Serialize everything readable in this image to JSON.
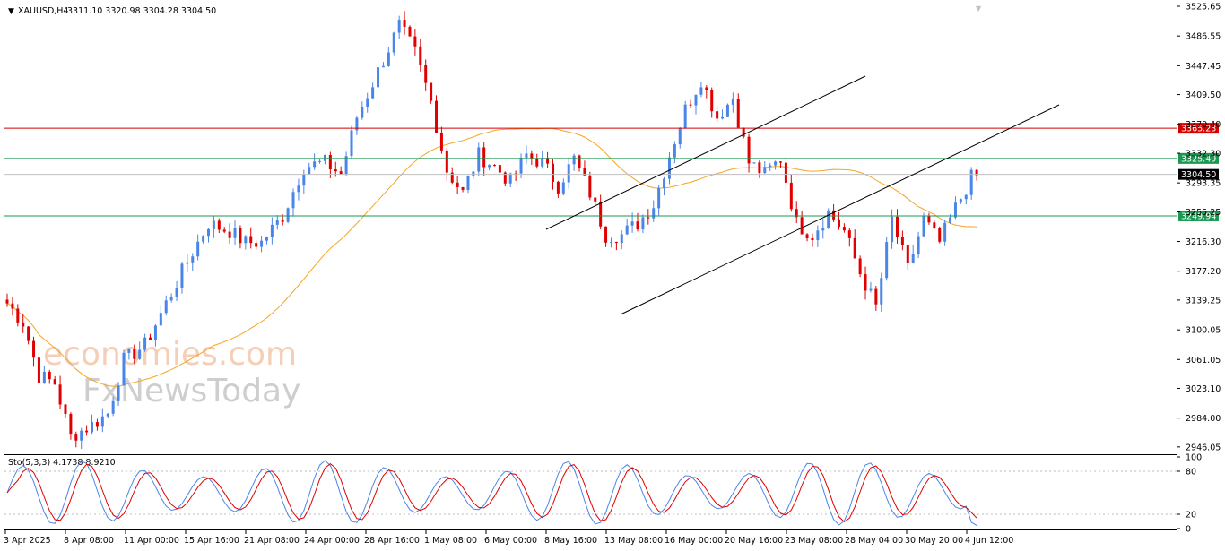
{
  "header": {
    "symbol": "XAUUSD,H4",
    "ohlc": "3311.10 3320.98 3304.28 3304.50"
  },
  "watermark": {
    "line1": "economies.com",
    "line2": "FxNewsToday"
  },
  "chart_data": {
    "type": "candlestick",
    "yaxis_ticks": [
      3525.65,
      3486.55,
      3447.45,
      3409.5,
      3370.4,
      3332.3,
      3293.35,
      3255.25,
      3216.3,
      3177.2,
      3139.25,
      3100.05,
      3061.05,
      3023.1,
      2984.0,
      2946.05
    ],
    "ylim": [
      2940,
      3528
    ],
    "xaxis_labels": [
      "3 Apr 2025",
      "8 Apr 08:00",
      "11 Apr 00:00",
      "15 Apr 16:00",
      "21 Apr 08:00",
      "24 Apr 00:00",
      "28 Apr 16:00",
      "1 May 08:00",
      "6 May 00:00",
      "8 May 16:00",
      "13 May 08:00",
      "16 May 00:00",
      "20 May 16:00",
      "23 May 08:00",
      "28 May 04:00",
      "30 May 20:00",
      "4 Jun 12:00"
    ],
    "bars": 184,
    "price_path": [
      [
        0,
        3135
      ],
      [
        3,
        3110
      ],
      [
        6,
        3040
      ],
      [
        9,
        3030
      ],
      [
        12,
        2960
      ],
      [
        16,
        2975
      ],
      [
        19,
        2990
      ],
      [
        22,
        3060
      ],
      [
        26,
        3080
      ],
      [
        30,
        3135
      ],
      [
        34,
        3190
      ],
      [
        38,
        3240
      ],
      [
        42,
        3230
      ],
      [
        45,
        3215
      ],
      [
        48,
        3215
      ],
      [
        52,
        3250
      ],
      [
        56,
        3315
      ],
      [
        60,
        3320
      ],
      [
        63,
        3305
      ],
      [
        66,
        3380
      ],
      [
        70,
        3440
      ],
      [
        74,
        3500
      ],
      [
        77,
        3465
      ],
      [
        80,
        3400
      ],
      [
        83,
        3310
      ],
      [
        86,
        3280
      ],
      [
        89,
        3330
      ],
      [
        92,
        3315
      ],
      [
        95,
        3295
      ],
      [
        98,
        3330
      ],
      [
        101,
        3320
      ],
      [
        104,
        3290
      ],
      [
        107,
        3325
      ],
      [
        110,
        3280
      ],
      [
        113,
        3225
      ],
      [
        116,
        3225
      ],
      [
        119,
        3240
      ],
      [
        122,
        3265
      ],
      [
        125,
        3330
      ],
      [
        128,
        3390
      ],
      [
        131,
        3430
      ],
      [
        134,
        3380
      ],
      [
        137,
        3405
      ],
      [
        140,
        3320
      ],
      [
        143,
        3305
      ],
      [
        146,
        3325
      ],
      [
        149,
        3240
      ],
      [
        152,
        3225
      ],
      [
        155,
        3255
      ],
      [
        158,
        3230
      ],
      [
        161,
        3175
      ],
      [
        164,
        3130
      ],
      [
        167,
        3245
      ],
      [
        170,
        3180
      ],
      [
        173,
        3245
      ],
      [
        176,
        3215
      ],
      [
        179,
        3260
      ],
      [
        182,
        3300
      ],
      [
        184,
        3304.5
      ]
    ],
    "horizontal_levels": [
      {
        "value": 3365.23,
        "label": "3365.23",
        "color": "#d40000"
      },
      {
        "value": 3325.49,
        "label": "3325.49",
        "color": "#1a9850"
      },
      {
        "value": 3304.5,
        "label": "3304.50",
        "color": "#000000"
      },
      {
        "value": 3249.94,
        "label": "3249.94",
        "color": "#1a9850"
      }
    ],
    "colors": {
      "bull": "#4a86e8",
      "bear": "#e00000",
      "ma": "#f5a623",
      "grid": "#000000"
    },
    "indicator": {
      "title": "Sto(5,3,3) 4.1738 8.9210",
      "ylim": [
        0,
        100
      ],
      "ticks": [
        100,
        80,
        20,
        0
      ],
      "main_color": "#4a86e8",
      "signal_color": "#e00000"
    }
  }
}
